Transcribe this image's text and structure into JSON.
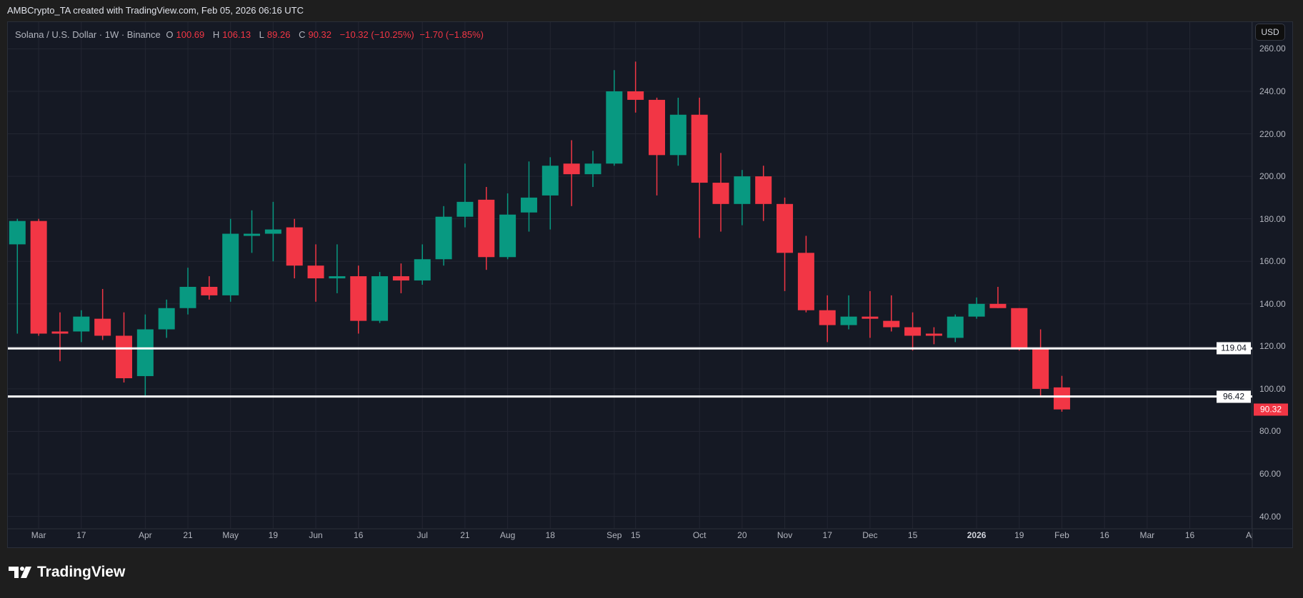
{
  "credit": "AMBCrypto_TA created with TradingView.com, Feb 05, 2026 06:16 UTC",
  "legend": {
    "symbol": "Solana / U.S. Dollar · 1W · Binance",
    "o_label": "O",
    "o": "100.69",
    "h_label": "H",
    "h": "106.13",
    "l_label": "L",
    "l": "89.26",
    "c_label": "C",
    "c": "90.32",
    "change": "−10.32 (−10.25%)",
    "change2": "−1.70 (−1.85%)"
  },
  "currency_button": "USD",
  "logo_text": "TradingView",
  "colors": {
    "up": "#089981",
    "down": "#f23645",
    "background": "#151924",
    "level_line": "#ffffff"
  },
  "chart_data": {
    "type": "candlestick",
    "title": "",
    "interval": "1W",
    "ylim": [
      40,
      260
    ],
    "grid": true,
    "y_ticks": [
      "260.00",
      "240.00",
      "220.00",
      "200.00",
      "180.00",
      "160.00",
      "140.00",
      "120.00",
      "100.00",
      "80.00",
      "60.00",
      "40.00"
    ],
    "x_ticks": [
      {
        "label": "Mar",
        "week": 1
      },
      {
        "label": "17",
        "week": 3
      },
      {
        "label": "Apr",
        "week": 6
      },
      {
        "label": "21",
        "week": 8
      },
      {
        "label": "May",
        "week": 10
      },
      {
        "label": "19",
        "week": 12
      },
      {
        "label": "Jun",
        "week": 14
      },
      {
        "label": "16",
        "week": 16
      },
      {
        "label": "Jul",
        "week": 19
      },
      {
        "label": "21",
        "week": 21
      },
      {
        "label": "Aug",
        "week": 23
      },
      {
        "label": "18",
        "week": 25
      },
      {
        "label": "Sep",
        "week": 28
      },
      {
        "label": "15",
        "week": 29
      },
      {
        "label": "Oct",
        "week": 32
      },
      {
        "label": "20",
        "week": 34
      },
      {
        "label": "Nov",
        "week": 36
      },
      {
        "label": "17",
        "week": 38
      },
      {
        "label": "Dec",
        "week": 40
      },
      {
        "label": "15",
        "week": 42
      },
      {
        "label": "2026",
        "week": 45,
        "bold": true
      },
      {
        "label": "19",
        "week": 47
      },
      {
        "label": "Feb",
        "week": 49
      },
      {
        "label": "16",
        "week": 51
      },
      {
        "label": "Mar",
        "week": 53
      },
      {
        "label": "16",
        "week": 55
      },
      {
        "label": "Ap",
        "week": 57.9
      }
    ],
    "horizontal_levels": [
      119.04,
      96.42
    ],
    "level_labels": [
      "119.04",
      "96.42"
    ],
    "last_price": 90.32,
    "last_price_label": "90.32",
    "candles": [
      {
        "week": "2025-02-24",
        "o": 168,
        "h": 180,
        "l": 126,
        "c": 179
      },
      {
        "week": "2025-03-03",
        "o": 179,
        "h": 180,
        "l": 125,
        "c": 126
      },
      {
        "week": "2025-03-10",
        "o": 127,
        "h": 136,
        "l": 113,
        "c": 126
      },
      {
        "week": "2025-03-17",
        "o": 127,
        "h": 137,
        "l": 122,
        "c": 134
      },
      {
        "week": "2025-03-24",
        "o": 133,
        "h": 147,
        "l": 123,
        "c": 125
      },
      {
        "week": "2025-03-31",
        "o": 125,
        "h": 136,
        "l": 103,
        "c": 105
      },
      {
        "week": "2025-04-07",
        "o": 106,
        "h": 135,
        "l": 96,
        "c": 128
      },
      {
        "week": "2025-04-14",
        "o": 128,
        "h": 142,
        "l": 124,
        "c": 138
      },
      {
        "week": "2025-04-21",
        "o": 138,
        "h": 157,
        "l": 135,
        "c": 148
      },
      {
        "week": "2025-04-28",
        "o": 148,
        "h": 153,
        "l": 142,
        "c": 144
      },
      {
        "week": "2025-05-05",
        "o": 144,
        "h": 180,
        "l": 141,
        "c": 173
      },
      {
        "week": "2025-05-12",
        "o": 172.5,
        "h": 184,
        "l": 164,
        "c": 173
      },
      {
        "week": "2025-05-19",
        "o": 173,
        "h": 188,
        "l": 160,
        "c": 175
      },
      {
        "week": "2025-05-26",
        "o": 176,
        "h": 180,
        "l": 152,
        "c": 158
      },
      {
        "week": "2025-06-02",
        "o": 158,
        "h": 168,
        "l": 141,
        "c": 152
      },
      {
        "week": "2025-06-09",
        "o": 152.5,
        "h": 168,
        "l": 145,
        "c": 153
      },
      {
        "week": "2025-06-16",
        "o": 153,
        "h": 158,
        "l": 126,
        "c": 132
      },
      {
        "week": "2025-06-23",
        "o": 132,
        "h": 155,
        "l": 131,
        "c": 153
      },
      {
        "week": "2025-06-30",
        "o": 153,
        "h": 159,
        "l": 145,
        "c": 151
      },
      {
        "week": "2025-07-07",
        "o": 151,
        "h": 168,
        "l": 149,
        "c": 161
      },
      {
        "week": "2025-07-14",
        "o": 161,
        "h": 186,
        "l": 158,
        "c": 181
      },
      {
        "week": "2025-07-21",
        "o": 181,
        "h": 206,
        "l": 176,
        "c": 188
      },
      {
        "week": "2025-07-28",
        "o": 189,
        "h": 195,
        "l": 156,
        "c": 162
      },
      {
        "week": "2025-08-04",
        "o": 162,
        "h": 192,
        "l": 161,
        "c": 182
      },
      {
        "week": "2025-08-11",
        "o": 183,
        "h": 207,
        "l": 174,
        "c": 190
      },
      {
        "week": "2025-08-18",
        "o": 191,
        "h": 209,
        "l": 175,
        "c": 205
      },
      {
        "week": "2025-08-25",
        "o": 206,
        "h": 217,
        "l": 186,
        "c": 201
      },
      {
        "week": "2025-09-01",
        "o": 201,
        "h": 212,
        "l": 195,
        "c": 206
      },
      {
        "week": "2025-09-08",
        "o": 206,
        "h": 250,
        "l": 205,
        "c": 240
      },
      {
        "week": "2025-09-15",
        "o": 240,
        "h": 254,
        "l": 230,
        "c": 236
      },
      {
        "week": "2025-09-22",
        "o": 236,
        "h": 237,
        "l": 191,
        "c": 210
      },
      {
        "week": "2025-09-29",
        "o": 210,
        "h": 237,
        "l": 205,
        "c": 229
      },
      {
        "week": "2025-10-06",
        "o": 229,
        "h": 237,
        "l": 171,
        "c": 197
      },
      {
        "week": "2025-10-13",
        "o": 197,
        "h": 211,
        "l": 174,
        "c": 187
      },
      {
        "week": "2025-10-20",
        "o": 187,
        "h": 203,
        "l": 177,
        "c": 200
      },
      {
        "week": "2025-10-27",
        "o": 200,
        "h": 205,
        "l": 179,
        "c": 187
      },
      {
        "week": "2025-11-03",
        "o": 187,
        "h": 190,
        "l": 146,
        "c": 164
      },
      {
        "week": "2025-11-10",
        "o": 164,
        "h": 172,
        "l": 136,
        "c": 137
      },
      {
        "week": "2025-11-17",
        "o": 137,
        "h": 144,
        "l": 122,
        "c": 130
      },
      {
        "week": "2025-11-24",
        "o": 130,
        "h": 144,
        "l": 128,
        "c": 134
      },
      {
        "week": "2025-12-01",
        "o": 134,
        "h": 146,
        "l": 124,
        "c": 133
      },
      {
        "week": "2025-12-08",
        "o": 132,
        "h": 144,
        "l": 127,
        "c": 129
      },
      {
        "week": "2025-12-15",
        "o": 129,
        "h": 136,
        "l": 118,
        "c": 125
      },
      {
        "week": "2025-12-22",
        "o": 126,
        "h": 129,
        "l": 121,
        "c": 125
      },
      {
        "week": "2025-12-29",
        "o": 124,
        "h": 135,
        "l": 122,
        "c": 134
      },
      {
        "week": "2026-01-05",
        "o": 134,
        "h": 143,
        "l": 133,
        "c": 140
      },
      {
        "week": "2026-01-12",
        "o": 140,
        "h": 148,
        "l": 138,
        "c": 138
      },
      {
        "week": "2026-01-19",
        "o": 138,
        "h": 138,
        "l": 118,
        "c": 119
      },
      {
        "week": "2026-01-26",
        "o": 119,
        "h": 128,
        "l": 96,
        "c": 100
      },
      {
        "week": "2026-02-02",
        "o": 100.69,
        "h": 106.13,
        "l": 89.26,
        "c": 90.32
      }
    ]
  }
}
